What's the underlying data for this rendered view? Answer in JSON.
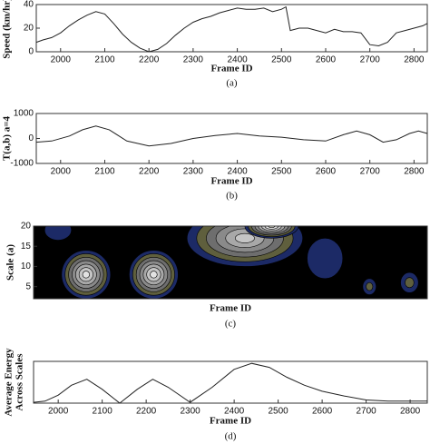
{
  "chart_data": [
    {
      "type": "line",
      "ylabel": "Speed (km/hr)",
      "xlabel": "Frame ID",
      "caption": "(a)",
      "x": [
        1945,
        1960,
        1980,
        2000,
        2020,
        2040,
        2060,
        2080,
        2100,
        2120,
        2140,
        2160,
        2180,
        2200,
        2220,
        2240,
        2260,
        2280,
        2300,
        2320,
        2340,
        2360,
        2380,
        2400,
        2420,
        2440,
        2460,
        2480,
        2500,
        2510,
        2520,
        2540,
        2560,
        2580,
        2600,
        2620,
        2640,
        2660,
        2680,
        2700,
        2720,
        2740,
        2760,
        2780,
        2800,
        2820,
        2830
      ],
      "values": [
        8,
        10,
        12,
        16,
        22,
        27,
        31,
        34,
        32,
        24,
        15,
        8,
        3,
        0,
        2,
        7,
        14,
        20,
        25,
        28,
        30,
        33,
        35,
        37,
        36,
        36,
        37,
        34,
        36,
        38,
        18,
        20,
        20,
        18,
        16,
        19,
        17,
        17,
        16,
        6,
        5,
        8,
        16,
        18,
        20,
        22,
        24
      ],
      "color": "#222222",
      "xlim": [
        1945,
        2830
      ],
      "ylim": [
        0,
        40
      ],
      "yticks": [
        0,
        20,
        40
      ],
      "xticks": [
        2000,
        2100,
        2200,
        2300,
        2400,
        2500,
        2600,
        2700,
        2800
      ]
    },
    {
      "type": "line",
      "ylabel": "T(a,b) a=4",
      "xlabel": "Frame ID",
      "caption": "(b)",
      "x": [
        1945,
        1980,
        2020,
        2050,
        2080,
        2110,
        2150,
        2200,
        2250,
        2300,
        2350,
        2400,
        2450,
        2500,
        2550,
        2600,
        2640,
        2670,
        2700,
        2730,
        2760,
        2790,
        2810,
        2830
      ],
      "values": [
        -150,
        -100,
        100,
        350,
        500,
        350,
        -100,
        -300,
        -200,
        0,
        120,
        200,
        100,
        50,
        -50,
        -100,
        150,
        300,
        150,
        -150,
        -50,
        200,
        300,
        200
      ],
      "color": "#222222",
      "xlim": [
        1945,
        2830
      ],
      "ylim": [
        -1000,
        1000
      ],
      "yticks": [
        -1000,
        0,
        1000
      ],
      "xticks": [
        2000,
        2100,
        2200,
        2300,
        2400,
        2500,
        2600,
        2700,
        2800
      ]
    },
    {
      "type": "contour",
      "ylabel": "Scale (a)",
      "xlabel": "Frame ID",
      "caption": "(c)",
      "xlim": [
        1945,
        2830
      ],
      "ylim": [
        2,
        20
      ],
      "yticks": [
        5,
        10,
        15,
        20
      ],
      "colors": [
        "#000000",
        "#1c2a66",
        "#5f5f3d",
        "#6e6e6e",
        "#8a8a8a",
        "#a8a8a8",
        "#c5c5c5",
        "#e2e2e2",
        "#fbfbee"
      ],
      "peaks": [
        {
          "x": 2063,
          "y": 8,
          "width": 110,
          "height": 12,
          "levels": 7
        },
        {
          "x": 2215,
          "y": 8,
          "width": 110,
          "height": 12,
          "levels": 7
        },
        {
          "x": 2600,
          "y": 12,
          "width": 80,
          "height": 10,
          "levels": 1
        },
        {
          "x": 2000,
          "y": 19,
          "width": 60,
          "height": 5,
          "levels": 1
        },
        {
          "x": 2420,
          "y": 17,
          "width": 260,
          "height": 14,
          "levels": 6
        },
        {
          "x": 2480,
          "y": 20,
          "width": 120,
          "height": 6,
          "levels": 8
        },
        {
          "x": 2790,
          "y": 6,
          "width": 40,
          "height": 5,
          "levels": 2
        },
        {
          "x": 2700,
          "y": 5,
          "width": 30,
          "height": 4,
          "levels": 2
        }
      ]
    },
    {
      "type": "line",
      "ylabel": [
        "Average Energy",
        "Across Scales"
      ],
      "xlabel": "Frame ID",
      "caption": "(d)",
      "x": [
        1944,
        1970,
        2000,
        2030,
        2065,
        2100,
        2140,
        2180,
        2215,
        2250,
        2300,
        2350,
        2400,
        2440,
        2480,
        2520,
        2560,
        2600,
        2650,
        2700,
        2750,
        2800,
        2839
      ],
      "values": [
        0.02,
        0.05,
        0.2,
        0.45,
        0.6,
        0.35,
        0,
        0.35,
        0.6,
        0.4,
        0.02,
        0.4,
        0.85,
        1,
        0.9,
        0.65,
        0.45,
        0.3,
        0.18,
        0.08,
        0.05,
        0.05,
        0.05
      ],
      "color": "#222222",
      "xlim": [
        1944,
        2839
      ],
      "ylim": [
        0,
        1.05
      ],
      "xticks": [
        2000,
        2100,
        2200,
        2300,
        2400,
        2500,
        2600,
        2700,
        2800
      ]
    }
  ]
}
